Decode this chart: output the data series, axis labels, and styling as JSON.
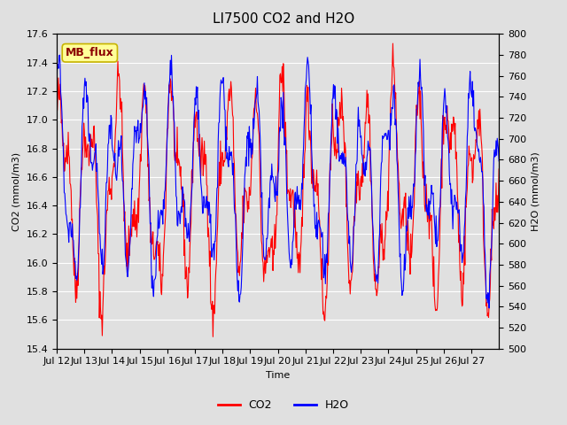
{
  "title": "LI7500 CO2 and H2O",
  "xlabel": "Time",
  "ylabel_left": "CO2 (mmol/m3)",
  "ylabel_right": "H2O (mmol/m3)",
  "co2_ylim": [
    15.4,
    17.6
  ],
  "h2o_ylim": [
    500,
    800
  ],
  "co2_yticks": [
    15.4,
    15.6,
    15.8,
    16.0,
    16.2,
    16.4,
    16.6,
    16.8,
    17.0,
    17.2,
    17.4,
    17.6
  ],
  "h2o_yticks": [
    500,
    520,
    540,
    560,
    580,
    600,
    620,
    640,
    660,
    680,
    700,
    720,
    740,
    760,
    780,
    800
  ],
  "xtick_labels": [
    "Jul 12",
    "Jul 13",
    "Jul 14",
    "Jul 15",
    "Jul 16",
    "Jul 17",
    "Jul 18",
    "Jul 19",
    "Jul 20",
    "Jul 21",
    "Jul 22",
    "Jul 23",
    "Jul 24",
    "Jul 25",
    "Jul 26",
    "Jul 27"
  ],
  "co2_color": "#FF0000",
  "h2o_color": "#0000FF",
  "bg_color": "#E0E0E0",
  "plot_bg_color": "#E0E0E0",
  "grid_color": "#FFFFFF",
  "annotation_text": "MB_flux",
  "annotation_facecolor": "#FFFF99",
  "annotation_edgecolor": "#C8B400",
  "annotation_textcolor": "#8B0000",
  "legend_fontsize": 9,
  "title_fontsize": 11,
  "axis_fontsize": 8
}
